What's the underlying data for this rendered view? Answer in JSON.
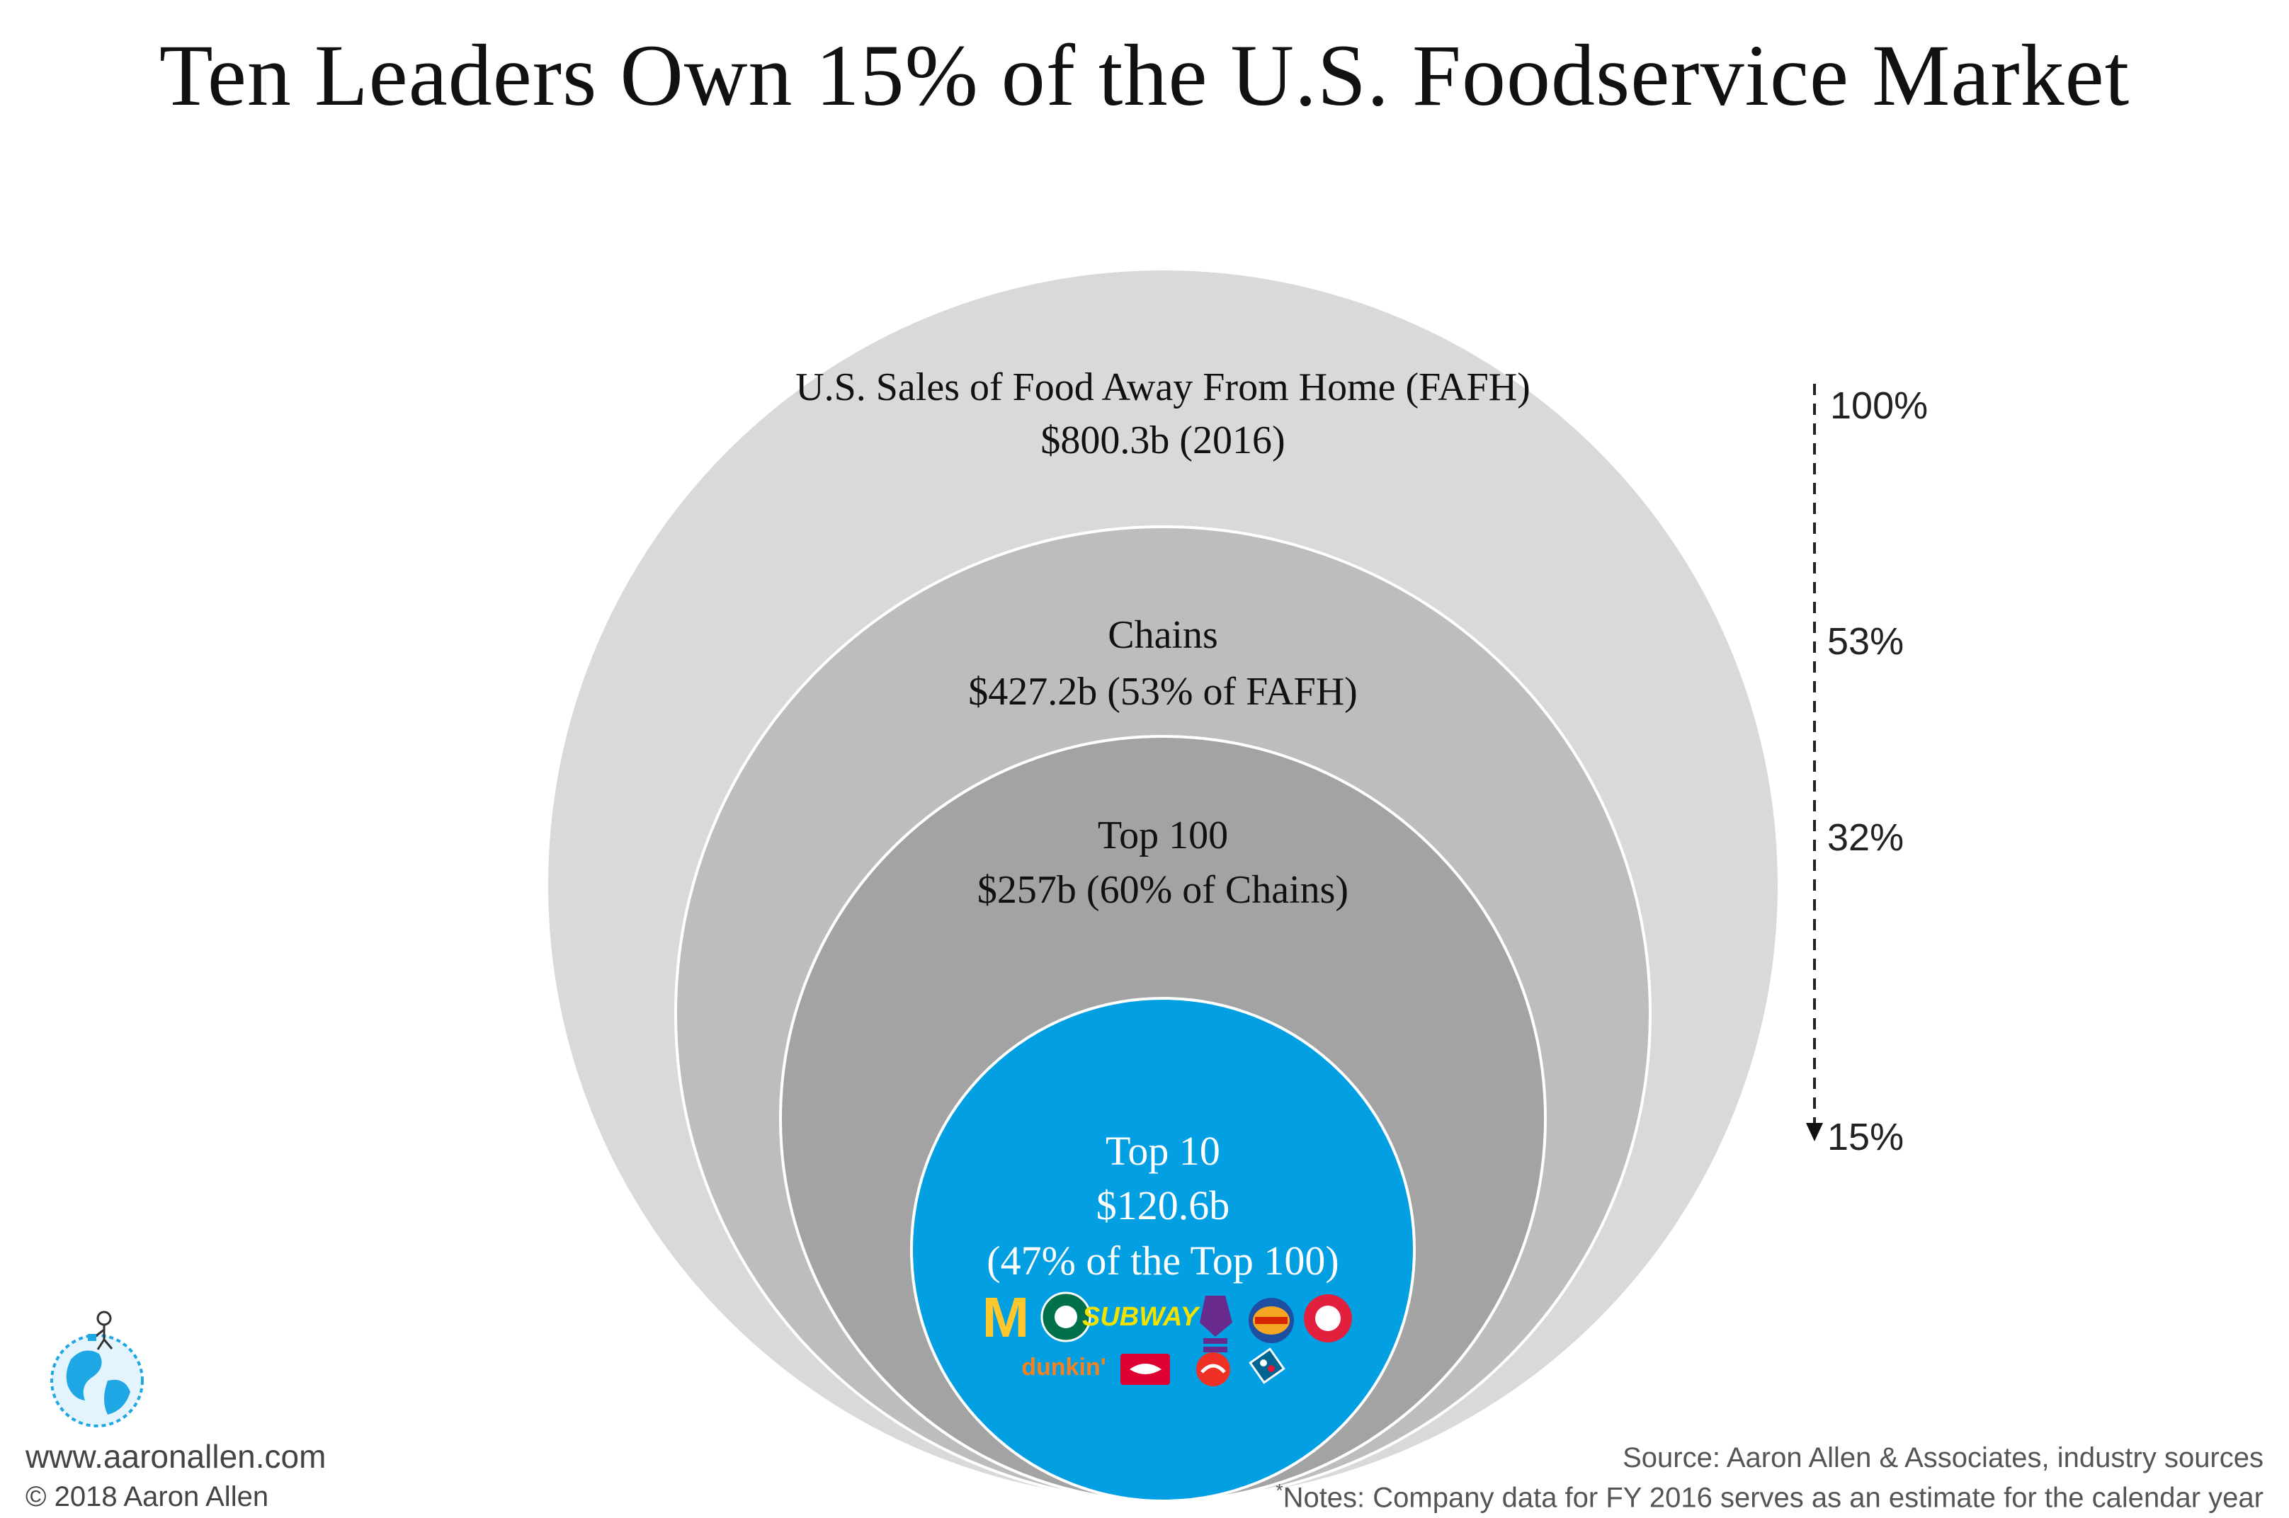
{
  "title": "Ten Leaders Own 15% of the U.S. Foodservice Market",
  "circles": [
    {
      "id": "fafh",
      "line1": "U.S. Sales of Food Away From Home (FAFH)",
      "line2": "$800.3b (2016)",
      "color": "#d9d9d9"
    },
    {
      "id": "chains",
      "line1": "Chains",
      "line2": "$427.2b (53% of FAFH)",
      "color": "#bdbdbd"
    },
    {
      "id": "top100",
      "line1": "Top 100",
      "line2": "$257b (60% of Chains)",
      "color": "#a3a3a3"
    },
    {
      "id": "top10",
      "line1": "Top 10",
      "line2": "$120.6b",
      "line3": "(47% of the Top 100)",
      "color": "#039fe3"
    }
  ],
  "scale": {
    "labels": [
      "100%",
      "53%",
      "32%",
      "15%"
    ]
  },
  "logos": {
    "row1": [
      "mcdonalds-logo",
      "starbucks-logo",
      "subway-logo",
      "taco-bell-logo",
      "burger-king-logo",
      "wendys-logo"
    ],
    "row2": [
      "dunkin-logo",
      "chick-fil-a-logo",
      "pizza-hut-logo",
      "dominos-logo"
    ],
    "subway_text": "SUBWAY",
    "dunkin_text": "dunkin'"
  },
  "footer": {
    "website": "www.aaronallen.com",
    "copyright": "© 2018 Aaron Allen",
    "source": "Source: Aaron Allen & Associates, industry sources",
    "notes_asterisk": "*",
    "notes": "Notes: Company data for FY 2016 serves as an estimate for the calendar year"
  }
}
